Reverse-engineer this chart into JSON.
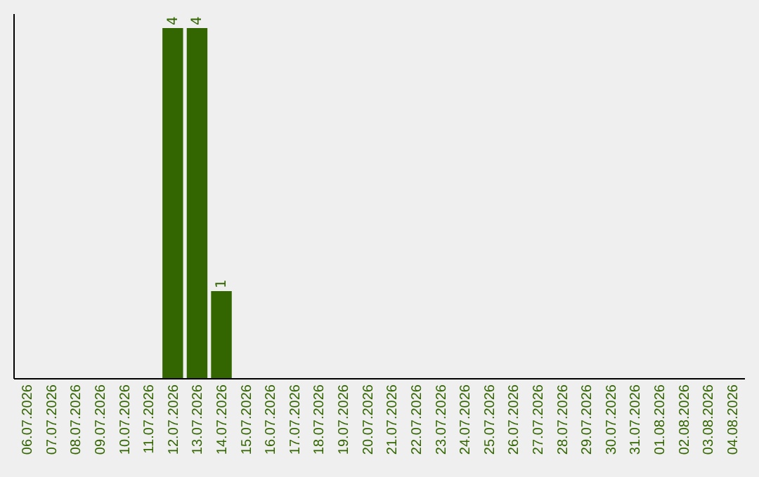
{
  "chart_data": {
    "type": "bar",
    "categories": [
      "06.07.2026",
      "07.07.2026",
      "08.07.2026",
      "09.07.2026",
      "10.07.2026",
      "11.07.2026",
      "12.07.2026",
      "13.07.2026",
      "14.07.2026",
      "15.07.2026",
      "16.07.2026",
      "17.07.2026",
      "18.07.2026",
      "19.07.2026",
      "20.07.2026",
      "21.07.2026",
      "22.07.2026",
      "23.07.2026",
      "24.07.2026",
      "25.07.2026",
      "26.07.2026",
      "27.07.2026",
      "28.07.2026",
      "29.07.2026",
      "30.07.2026",
      "31.07.2026",
      "01.08.2026",
      "02.08.2026",
      "03.08.2026",
      "04.08.2026"
    ],
    "values": [
      0,
      0,
      0,
      0,
      0,
      0,
      4,
      4,
      1,
      0,
      0,
      0,
      0,
      0,
      0,
      0,
      0,
      0,
      0,
      0,
      0,
      0,
      0,
      0,
      0,
      0,
      0,
      0,
      0,
      0
    ],
    "value_labels": [
      null,
      null,
      null,
      null,
      null,
      null,
      "4",
      "4",
      "1",
      null,
      null,
      null,
      null,
      null,
      null,
      null,
      null,
      null,
      null,
      null,
      null,
      null,
      null,
      null,
      null,
      null,
      null,
      null,
      null,
      null
    ],
    "color": "#336600",
    "grid": false
  }
}
